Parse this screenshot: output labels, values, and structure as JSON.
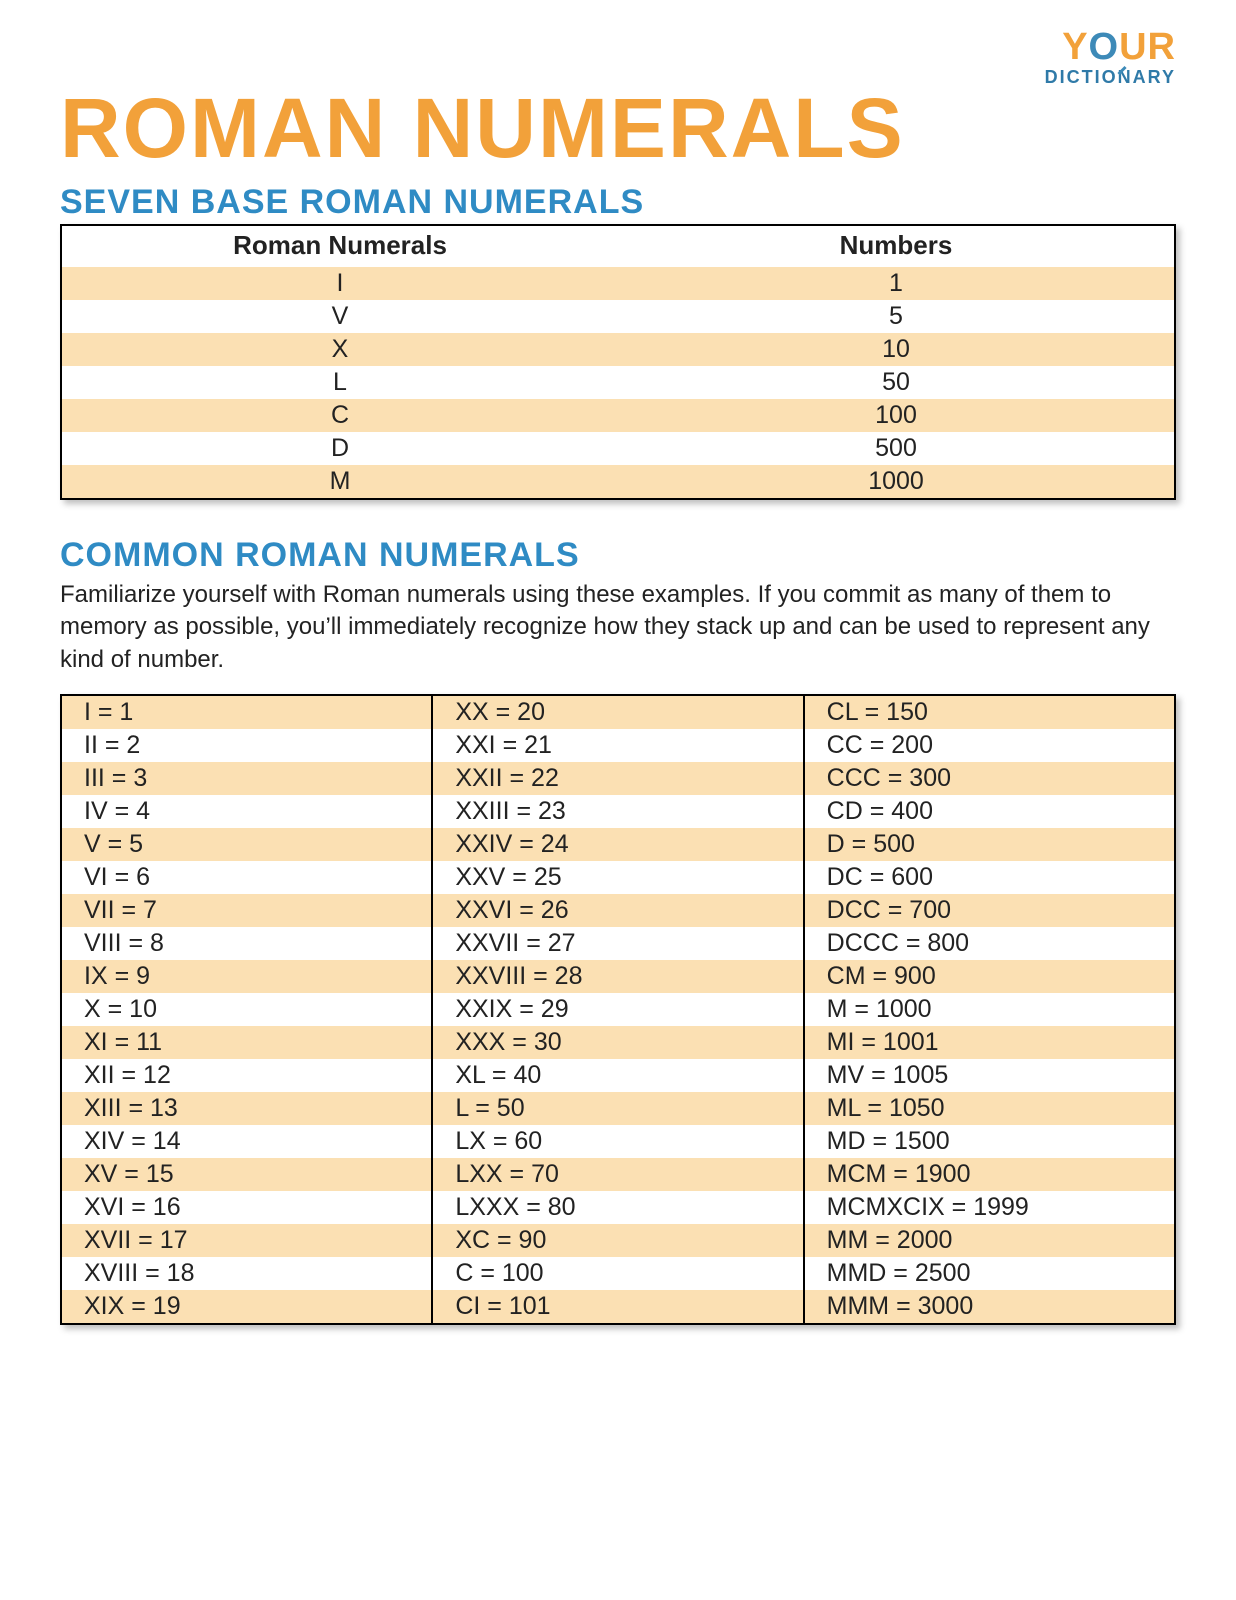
{
  "logo": {
    "top_y": "Y",
    "top_o": "O",
    "top_ur": "UR",
    "bottom": "DICTIONARY"
  },
  "title": "ROMAN NUMERALS",
  "section1": {
    "heading": "SEVEN BASE ROMAN NUMERALS",
    "col1": "Roman Numerals",
    "col2": "Numbers",
    "rows": [
      {
        "rn": "I",
        "n": "1"
      },
      {
        "rn": "V",
        "n": "5"
      },
      {
        "rn": "X",
        "n": "10"
      },
      {
        "rn": "L",
        "n": "50"
      },
      {
        "rn": "C",
        "n": "100"
      },
      {
        "rn": "D",
        "n": "500"
      },
      {
        "rn": "M",
        "n": "1000"
      }
    ]
  },
  "section2": {
    "heading": "COMMON ROMAN NUMERALS",
    "intro": "Familiarize yourself with Roman numerals using these examples. If you commit as many of them to memory as possible, you’ll immediately recognize how they stack up and can be used to represent any kind of number.",
    "columns": [
      [
        "I = 1",
        "II = 2",
        "III = 3",
        "IV = 4",
        "V = 5",
        "VI = 6",
        "VII = 7",
        "VIII = 8",
        "IX = 9",
        "X = 10",
        "XI = 11",
        "XII = 12",
        "XIII = 13",
        "XIV = 14",
        "XV = 15",
        "XVI = 16",
        "XVII = 17",
        "XVIII = 18",
        "XIX = 19"
      ],
      [
        "XX = 20",
        "XXI = 21",
        "XXII = 22",
        "XXIII = 23",
        "XXIV = 24",
        "XXV = 25",
        "XXVI = 26",
        "XXVII = 27",
        "XXVIII = 28",
        "XXIX = 29",
        "XXX = 30",
        "XL = 40",
        "L = 50",
        "LX = 60",
        "LXX = 70",
        "LXXX = 80",
        "XC = 90",
        "C = 100",
        "CI = 101"
      ],
      [
        "CL = 150",
        "CC = 200",
        "CCC = 300",
        "CD = 400",
        "D = 500",
        "DC = 600",
        "DCC = 700",
        "DCCC = 800",
        "CM = 900",
        "M = 1000",
        "MI = 1001",
        "MV = 1005",
        "ML = 1050",
        "MD = 1500",
        "MCM = 1900",
        "MCMXCIX = 1999",
        "MM = 2000",
        "MMD = 2500",
        "MMM = 3000"
      ]
    ]
  },
  "colors": {
    "accent_orange": "#f2a13a",
    "accent_blue": "#2f8bc4",
    "stripe": "#fbe0b3",
    "text": "#222222",
    "background": "#ffffff"
  }
}
